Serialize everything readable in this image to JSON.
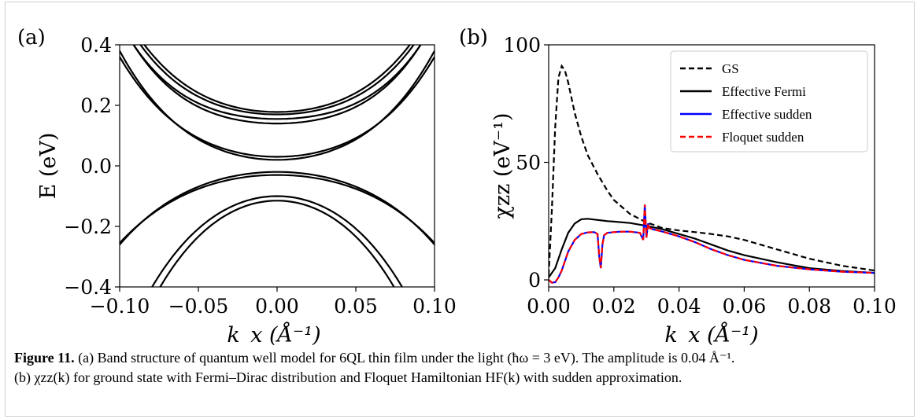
{
  "figure": {
    "caption_label": "Figure 11.",
    "caption_line1": "(a) Band structure of quantum well model for 6QL thin film under the light (ħω = 3 eV). The amplitude is 0.04 Å⁻¹.",
    "caption_line2": "(b) χzz(k) for ground state with Fermi–Dirac distribution and Floquet Hamiltonian HF(k) with sudden approximation."
  },
  "chart_data": [
    {
      "panel_label": "(a)",
      "type": "line",
      "xlabel": "k_x (Å⁻¹)",
      "ylabel": "E (eV)",
      "xlim": [
        -0.1,
        0.1
      ],
      "ylim": [
        -0.4,
        0.4
      ],
      "xticks": [
        "−0.10",
        "−0.05",
        "0.00",
        "0.05",
        "0.10"
      ],
      "yticks": [
        "0.4",
        "0.2",
        "0.0",
        "−0.2",
        "−0.4"
      ],
      "grid": false,
      "line_color": "#000000",
      "bands": [
        {
          "e0": 0.02,
          "curv": 24,
          "quart": 1200,
          "sign": 1
        },
        {
          "e0": 0.03,
          "curv": 22,
          "quart": 1100,
          "sign": 1
        },
        {
          "e0": 0.14,
          "curv": 18,
          "quart": 1600,
          "sign": 1
        },
        {
          "e0": 0.155,
          "curv": 17,
          "quart": 1500,
          "sign": 1
        },
        {
          "e0": 0.17,
          "curv": 20,
          "quart": 1400,
          "sign": 1
        },
        {
          "e0": 0.178,
          "curv": 22,
          "quart": 1300,
          "sign": 1
        },
        {
          "e0": -0.02,
          "curv": 18,
          "quart": 600,
          "sign": -1
        },
        {
          "e0": -0.03,
          "curv": 17,
          "quart": 550,
          "sign": -1
        },
        {
          "e0": -0.1,
          "curv": 40,
          "quart": 1200,
          "sign": -1
        },
        {
          "e0": -0.115,
          "curv": 44,
          "quart": 1400,
          "sign": -1
        }
      ]
    },
    {
      "panel_label": "(b)",
      "type": "line",
      "xlabel": "k_x (Å⁻¹)",
      "ylabel": "χzz (eV⁻¹)",
      "xlim": [
        0.0,
        0.1
      ],
      "ylim": [
        -3,
        100
      ],
      "xticks": [
        "0.00",
        "0.02",
        "0.04",
        "0.06",
        "0.08",
        "0.10"
      ],
      "yticks": [
        "100",
        "50",
        "0"
      ],
      "legend_position": "top-right",
      "grid": false,
      "series": [
        {
          "name": "GS",
          "color": "#000000",
          "dash": "dashed",
          "x": [
            0.0,
            0.001,
            0.002,
            0.003,
            0.004,
            0.005,
            0.006,
            0.008,
            0.01,
            0.012,
            0.015,
            0.018,
            0.02,
            0.025,
            0.03,
            0.035,
            0.04,
            0.045,
            0.05,
            0.055,
            0.06,
            0.07,
            0.08,
            0.09,
            0.1
          ],
          "y": [
            2,
            30,
            65,
            86,
            91,
            89,
            84,
            71,
            61,
            53,
            45,
            38,
            34,
            28,
            24.5,
            22,
            21,
            20.3,
            19.5,
            18.5,
            17,
            13,
            9,
            6,
            4
          ]
        },
        {
          "name": "Effective Fermi",
          "color": "#000000",
          "dash": "solid",
          "x": [
            0.0,
            0.002,
            0.004,
            0.006,
            0.008,
            0.01,
            0.012,
            0.015,
            0.018,
            0.02,
            0.025,
            0.03,
            0.035,
            0.04,
            0.045,
            0.05,
            0.055,
            0.06,
            0.07,
            0.08,
            0.09,
            0.1
          ],
          "y": [
            1,
            5,
            13,
            20,
            24,
            25.8,
            26,
            25.5,
            25,
            24.8,
            24.2,
            23,
            21.5,
            19.5,
            17.5,
            15,
            12.5,
            10.5,
            7.5,
            5,
            3.8,
            3
          ]
        },
        {
          "name": "Effective sudden",
          "color": "#0000ff",
          "dash": "solid",
          "x": [
            0.0,
            0.001,
            0.002,
            0.003,
            0.004,
            0.005,
            0.006,
            0.008,
            0.01,
            0.012,
            0.014,
            0.015,
            0.0155,
            0.016,
            0.0165,
            0.017,
            0.018,
            0.02,
            0.022,
            0.025,
            0.028,
            0.029,
            0.0295,
            0.03,
            0.0305,
            0.031,
            0.032,
            0.035,
            0.04,
            0.045,
            0.05,
            0.055,
            0.06,
            0.07,
            0.08,
            0.09,
            0.1
          ],
          "y": [
            0,
            -1.2,
            -1,
            1,
            4,
            8,
            12,
            17,
            19.5,
            20.2,
            20.3,
            19.5,
            10,
            5,
            15,
            19,
            20,
            20.3,
            20.5,
            20.5,
            20,
            17,
            32,
            18,
            24,
            22,
            21.5,
            20.5,
            18.5,
            16,
            13,
            10.5,
            8.5,
            6,
            4.5,
            3.5,
            3
          ]
        },
        {
          "name": "Floquet sudden",
          "color": "#ff0000",
          "dash": "dashed",
          "x": [
            0.0,
            0.001,
            0.002,
            0.003,
            0.004,
            0.005,
            0.006,
            0.008,
            0.01,
            0.012,
            0.014,
            0.015,
            0.0155,
            0.016,
            0.0165,
            0.017,
            0.018,
            0.02,
            0.022,
            0.025,
            0.028,
            0.029,
            0.0295,
            0.03,
            0.0305,
            0.031,
            0.032,
            0.035,
            0.04,
            0.045,
            0.05,
            0.055,
            0.06,
            0.07,
            0.08,
            0.09,
            0.1
          ],
          "y": [
            0,
            -1.2,
            -1,
            1,
            4,
            8,
            12,
            17,
            19.5,
            20.2,
            20.3,
            19.5,
            10,
            5,
            15,
            19,
            20,
            20.3,
            20.5,
            20.5,
            20,
            17,
            32,
            18,
            24,
            22,
            21.5,
            20.5,
            18.5,
            16,
            13,
            10.5,
            8.5,
            6,
            4.5,
            3.5,
            3
          ]
        }
      ]
    }
  ]
}
